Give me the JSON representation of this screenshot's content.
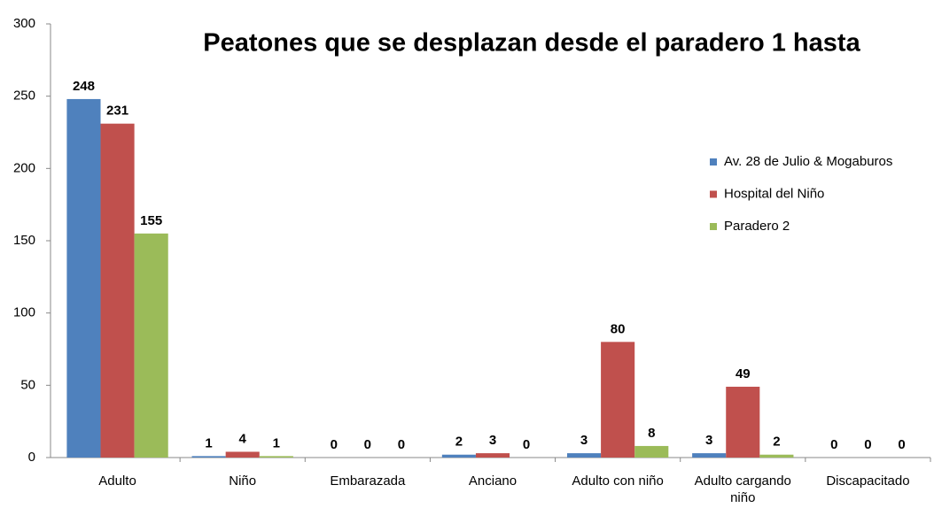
{
  "chart_data": {
    "type": "bar",
    "title": "Peatones que se desplazan desde el paradero 1 hasta",
    "categories": [
      "Adulto",
      "Niño",
      "Embarazada",
      "Anciano",
      "Adulto con niño",
      "Adulto cargando niño",
      "Discapacitado"
    ],
    "series": [
      {
        "name": "Av. 28 de Julio & Mogaburos",
        "color": "#4f81bd",
        "values": [
          248,
          1,
          0,
          2,
          3,
          3,
          0
        ]
      },
      {
        "name": "Hospital del Niño",
        "color": "#c0504d",
        "values": [
          231,
          4,
          0,
          3,
          80,
          49,
          0
        ]
      },
      {
        "name": "Paradero 2",
        "color": "#9bbb59",
        "values": [
          155,
          1,
          0,
          0,
          8,
          2,
          0
        ]
      }
    ],
    "ylim": [
      0,
      300
    ],
    "yticks": [
      0,
      50,
      100,
      150,
      200,
      250,
      300
    ],
    "grid": false,
    "legend": "right"
  }
}
